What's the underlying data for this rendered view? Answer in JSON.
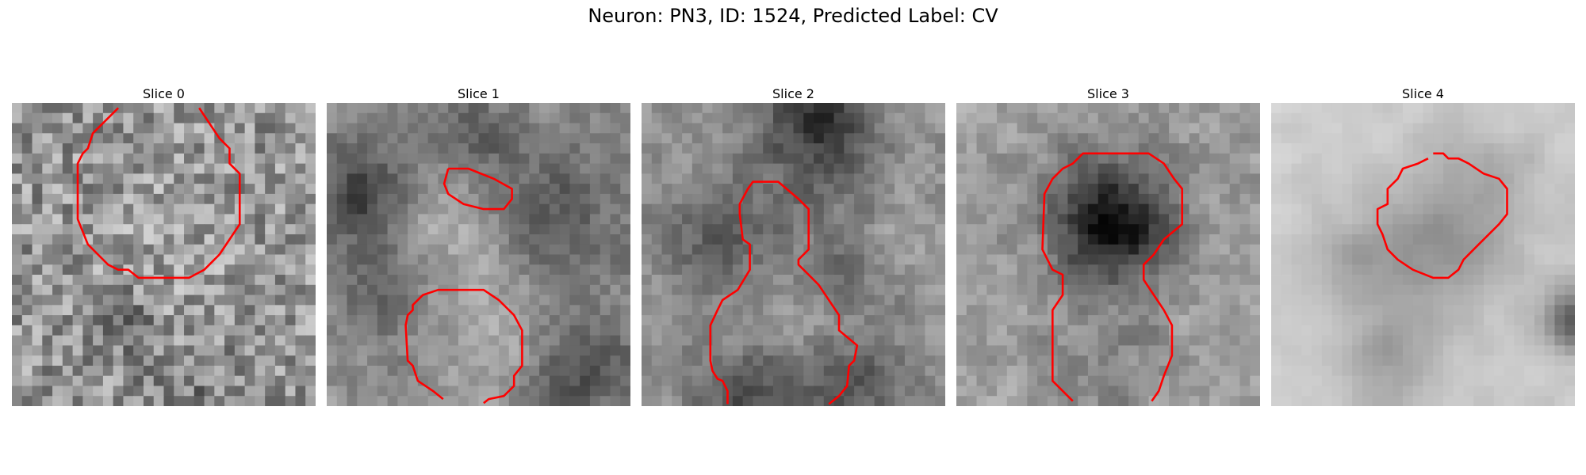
{
  "figure": {
    "title": "Neuron: PN3, ID: 1524, Predicted Label: CV",
    "panels": [
      {
        "title": "Slice 0"
      },
      {
        "title": "Slice 1"
      },
      {
        "title": "Slice 2"
      },
      {
        "title": "Slice 3"
      },
      {
        "title": "Slice 4"
      }
    ],
    "contour_color": "#ff0000",
    "colormap": "grayscale"
  }
}
